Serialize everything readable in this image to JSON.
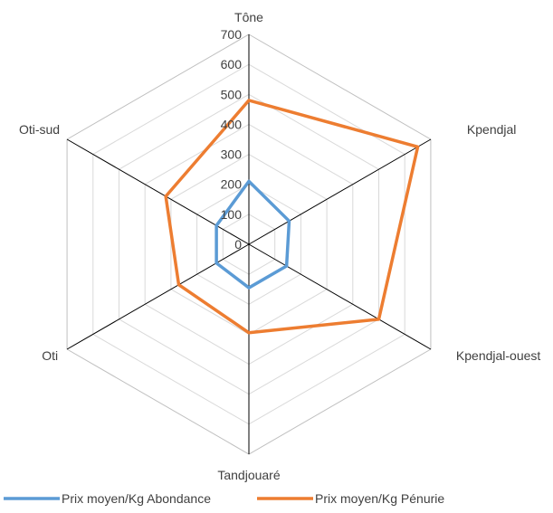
{
  "chart_data": {
    "type": "radar",
    "categories": [
      "Tône",
      "Kpendjal",
      "Kpendjal-ouest",
      "Tandjouaré",
      "Oti",
      "Oti-sud"
    ],
    "series": [
      {
        "name": "Prix moyen/Kg Abondance",
        "values": [
          210,
          155,
          145,
          145,
          125,
          125
        ],
        "color": "#5B9BD5"
      },
      {
        "name": "Prix moyen/Kg Pénurie",
        "values": [
          480,
          650,
          500,
          295,
          270,
          320
        ],
        "color": "#ED7D31"
      }
    ],
    "rlim": [
      0,
      700
    ],
    "ticks": [
      0,
      100,
      200,
      300,
      400,
      500,
      600,
      700
    ],
    "grid": true,
    "legend": "bottom"
  }
}
